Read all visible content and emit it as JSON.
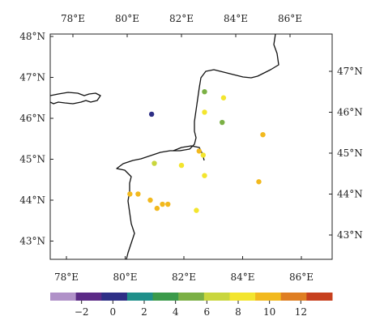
{
  "map": {
    "top_lon_labels": [
      "78°E",
      "80°E",
      "82°E",
      "84°E",
      "86°E"
    ],
    "bottom_lon_labels": [
      "78°E",
      "80°E",
      "82°E",
      "84°E",
      "86°E"
    ],
    "left_lat_labels": [
      "48°N",
      "47°N",
      "46°N",
      "45°N",
      "44°N",
      "43°N"
    ],
    "right_lat_labels": [
      "47°N",
      "46°N",
      "45°N",
      "44°N",
      "43°N"
    ],
    "lon_values": [
      78,
      80,
      82,
      84,
      86
    ],
    "bottom_lon_values": [
      78,
      80,
      82,
      84,
      86
    ],
    "left_lat_values": [
      48,
      47,
      46,
      45,
      44,
      43
    ],
    "right_lat_values": [
      47,
      46,
      45,
      44,
      43
    ],
    "colorbar": {
      "colors": [
        "#b091c8",
        "#5b2a86",
        "#2e2f86",
        "#1f8f8a",
        "#3b9a4a",
        "#7bb045",
        "#c9d63d",
        "#f3e52e",
        "#f2b91e",
        "#df7e22",
        "#c7401e"
      ],
      "tick_labels": [
        "−2",
        "0",
        "2",
        "4",
        "6",
        "8",
        "10",
        "12"
      ],
      "tick_values": [
        -2,
        0,
        2,
        4,
        6,
        8,
        10,
        12
      ],
      "range": [
        -4,
        14
      ]
    },
    "stations": [
      {
        "lon": 80.9,
        "lat": 46.1,
        "value": 0.5
      },
      {
        "lon": 82.85,
        "lat": 46.65,
        "value": 5
      },
      {
        "lon": 83.55,
        "lat": 46.5,
        "value": 7.5
      },
      {
        "lon": 82.85,
        "lat": 46.15,
        "value": 7.5
      },
      {
        "lon": 83.5,
        "lat": 45.9,
        "value": 4.5
      },
      {
        "lon": 85.0,
        "lat": 45.6,
        "value": 10.5
      },
      {
        "lon": 82.65,
        "lat": 45.2,
        "value": 9.5
      },
      {
        "lon": 82.8,
        "lat": 45.1,
        "value": 8.5
      },
      {
        "lon": 81.0,
        "lat": 44.9,
        "value": 7
      },
      {
        "lon": 82.0,
        "lat": 44.85,
        "value": 8.5
      },
      {
        "lon": 82.85,
        "lat": 44.6,
        "value": 8.5
      },
      {
        "lon": 84.85,
        "lat": 44.45,
        "value": 10.5
      },
      {
        "lon": 80.1,
        "lat": 44.15,
        "value": 10.5
      },
      {
        "lon": 80.4,
        "lat": 44.15,
        "value": 9.5
      },
      {
        "lon": 80.85,
        "lat": 44.0,
        "value": 10.5
      },
      {
        "lon": 81.3,
        "lat": 43.9,
        "value": 10.5
      },
      {
        "lon": 81.5,
        "lat": 43.9,
        "value": 10.5
      },
      {
        "lon": 81.1,
        "lat": 43.8,
        "value": 10.5
      },
      {
        "lon": 82.55,
        "lat": 43.75,
        "value": 9
      }
    ]
  }
}
